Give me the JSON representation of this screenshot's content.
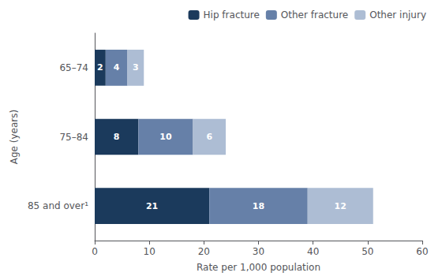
{
  "chart_data": {
    "type": "bar",
    "orientation": "horizontal",
    "stacked": true,
    "categories": [
      "65–74",
      "75–84",
      "85 and over¹"
    ],
    "series": [
      {
        "name": "Hip fracture",
        "color": "#1b3a5c",
        "values": [
          2,
          8,
          21
        ]
      },
      {
        "name": "Other fracture",
        "color": "#6680a8",
        "values": [
          4,
          10,
          18
        ]
      },
      {
        "name": "Other injury",
        "color": "#adbdd4",
        "values": [
          3,
          6,
          12
        ]
      }
    ],
    "xlim": [
      0,
      60
    ],
    "xticks": [
      0,
      10,
      20,
      30,
      40,
      50,
      60
    ],
    "xlabel": "Rate per 1,000 population",
    "ylabel": "Age (years)",
    "data_labels": true,
    "legend": "upper right",
    "grid": false
  }
}
